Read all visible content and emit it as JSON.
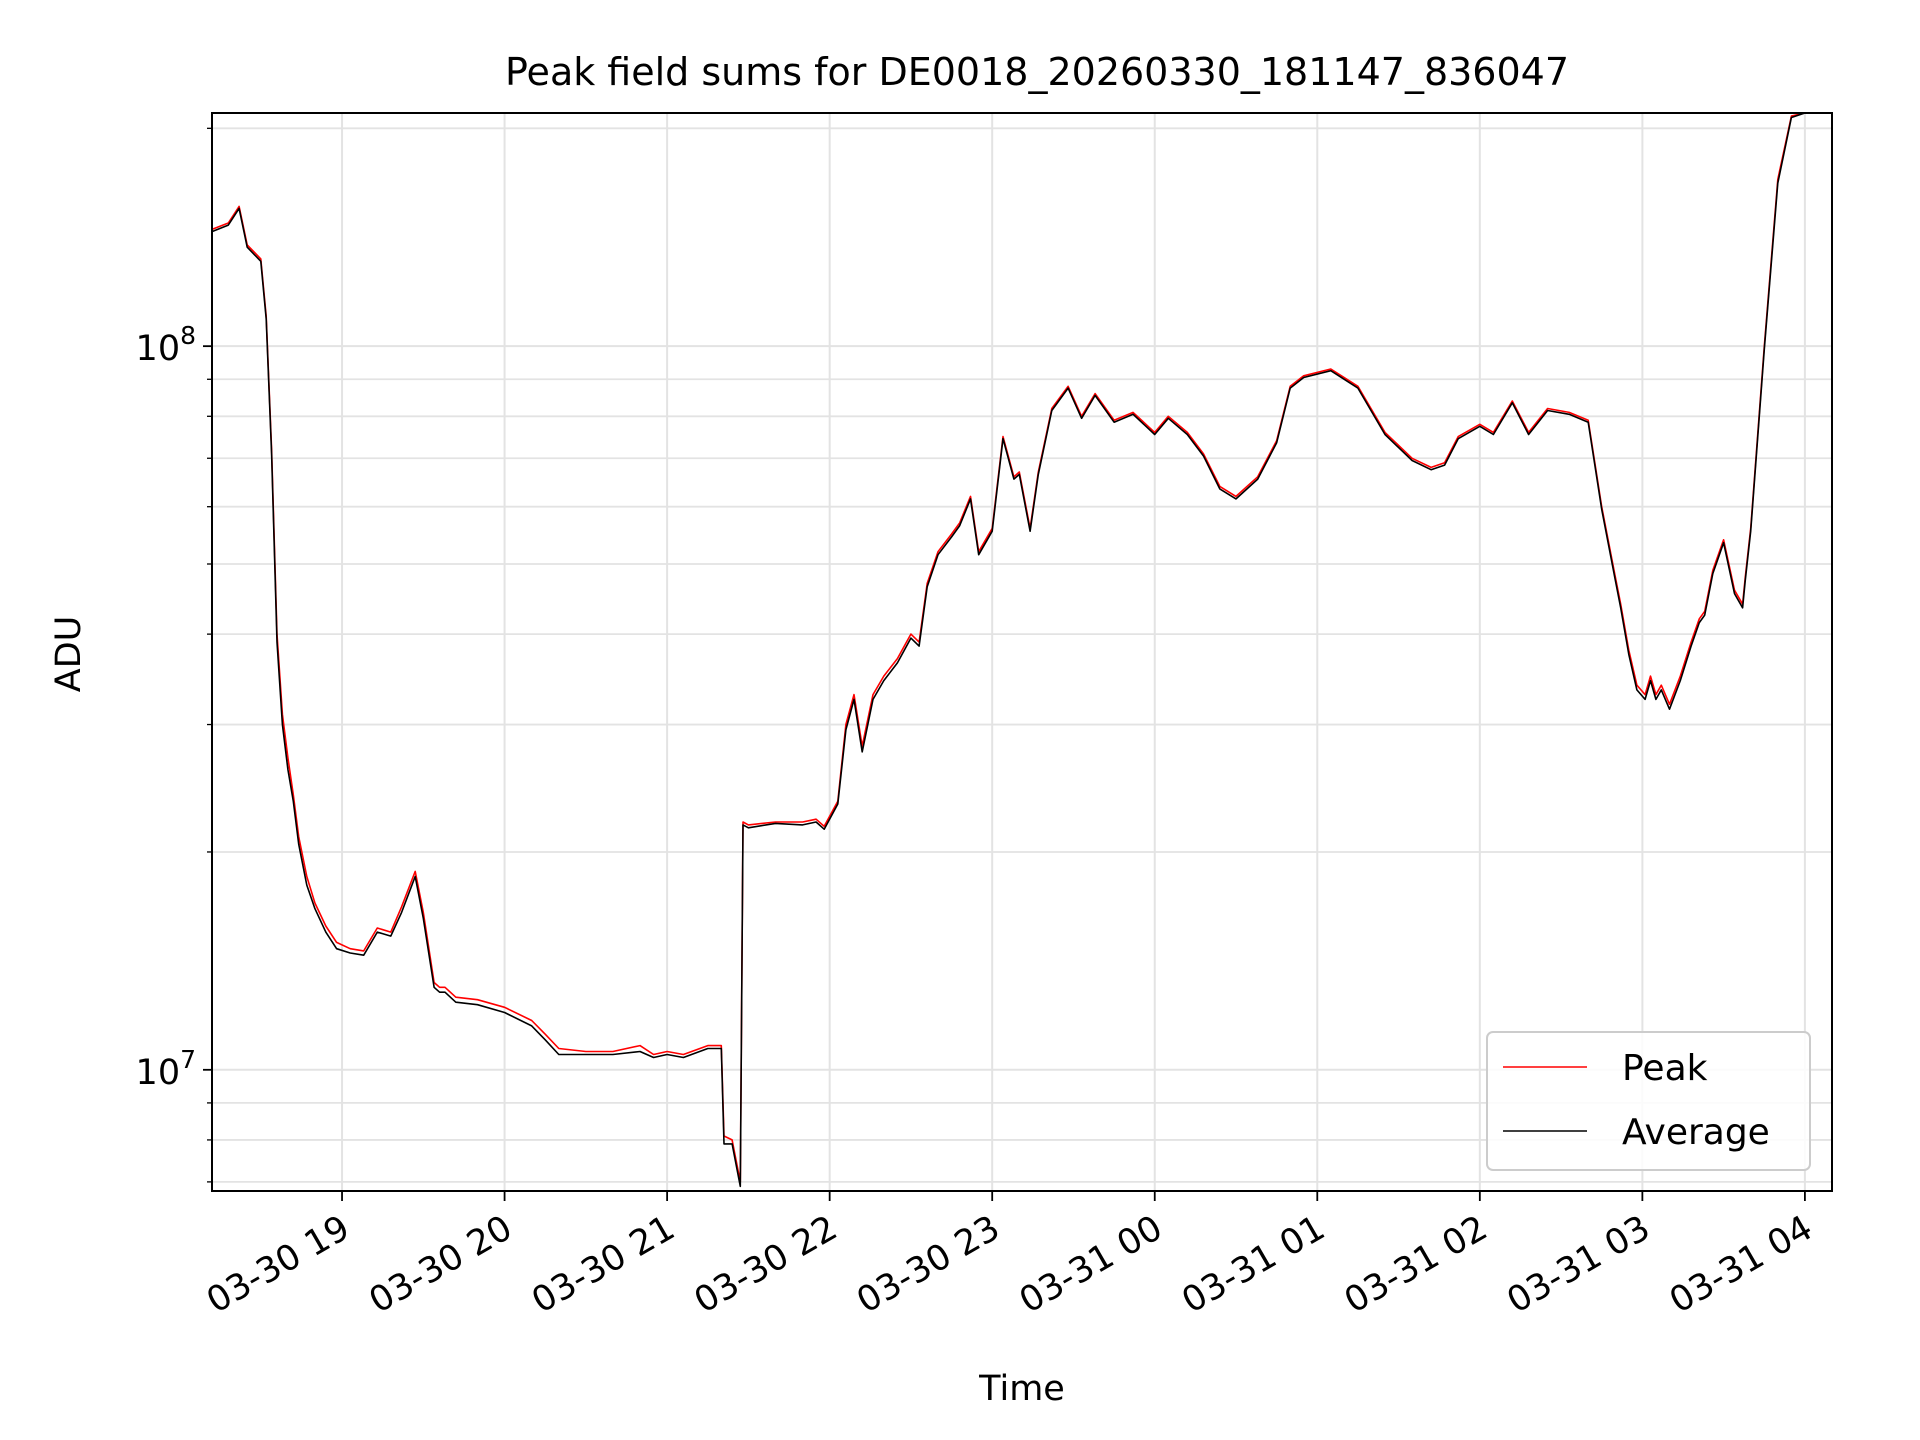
{
  "chart_data": {
    "type": "line",
    "title": "Peak field sums for DE0018_20260330_181147_836047",
    "xlabel": "Time",
    "ylabel": "ADU",
    "y_scale": "log",
    "ylim": [
      6800000,
      210000000
    ],
    "xlim": [
      "03-30 18:12",
      "03-31 04:10"
    ],
    "grid": true,
    "x_ticks": [
      {
        "t": "03-30 19:00",
        "label": "03-30 19"
      },
      {
        "t": "03-30 20:00",
        "label": "03-30 20"
      },
      {
        "t": "03-30 21:00",
        "label": "03-30 21"
      },
      {
        "t": "03-30 22:00",
        "label": "03-30 22"
      },
      {
        "t": "03-30 23:00",
        "label": "03-30 23"
      },
      {
        "t": "03-31 00:00",
        "label": "03-31 00"
      },
      {
        "t": "03-31 01:00",
        "label": "03-31 01"
      },
      {
        "t": "03-31 02:00",
        "label": "03-31 02"
      },
      {
        "t": "03-31 03:00",
        "label": "03-31 03"
      },
      {
        "t": "03-31 04:00",
        "label": "03-31 04"
      }
    ],
    "y_ticks": [
      {
        "v": 10000000,
        "base": "10",
        "exp": "7"
      },
      {
        "v": 100000000,
        "base": "10",
        "exp": "8"
      }
    ],
    "legend_position": "lower right",
    "colors": {
      "Peak": "#ff0000",
      "Average": "#000000"
    },
    "x": [
      "03-30 18:12",
      "03-30 18:18",
      "03-30 18:22",
      "03-30 18:25",
      "03-30 18:30",
      "03-30 18:32",
      "03-30 18:34",
      "03-30 18:36",
      "03-30 18:38",
      "03-30 18:40",
      "03-30 18:42",
      "03-30 18:44",
      "03-30 18:47",
      "03-30 18:50",
      "03-30 18:54",
      "03-30 18:58",
      "03-30 19:03",
      "03-30 19:08",
      "03-30 19:13",
      "03-30 19:18",
      "03-30 19:22",
      "03-30 19:27",
      "03-30 19:30",
      "03-30 19:34",
      "03-30 19:36",
      "03-30 19:38",
      "03-30 19:42",
      "03-30 19:50",
      "03-30 20:00",
      "03-30 20:10",
      "03-30 20:15",
      "03-30 20:20",
      "03-30 20:30",
      "03-30 20:40",
      "03-30 20:50",
      "03-30 20:55",
      "03-30 21:00",
      "03-30 21:06",
      "03-30 21:15",
      "03-30 21:20",
      "03-30 21:21",
      "03-30 21:24",
      "03-30 21:27",
      "03-30 21:28",
      "03-30 21:30",
      "03-30 21:40",
      "03-30 21:50",
      "03-30 21:55",
      "03-30 21:58",
      "03-30 22:03",
      "03-30 22:06",
      "03-30 22:09",
      "03-30 22:12",
      "03-30 22:16",
      "03-30 22:20",
      "03-30 22:25",
      "03-30 22:30",
      "03-30 22:33",
      "03-30 22:36",
      "03-30 22:40",
      "03-30 22:45",
      "03-30 22:48",
      "03-30 22:52",
      "03-30 22:55",
      "03-30 23:00",
      "03-30 23:04",
      "03-30 23:08",
      "03-30 23:10",
      "03-30 23:14",
      "03-30 23:17",
      "03-30 23:22",
      "03-30 23:28",
      "03-30 23:33",
      "03-30 23:38",
      "03-30 23:45",
      "03-30 23:52",
      "03-31 00:00",
      "03-31 00:05",
      "03-31 00:12",
      "03-31 00:18",
      "03-31 00:24",
      "03-31 00:30",
      "03-31 00:38",
      "03-31 00:45",
      "03-31 00:50",
      "03-31 00:55",
      "03-31 01:05",
      "03-31 01:15",
      "03-31 01:25",
      "03-31 01:35",
      "03-31 01:42",
      "03-31 01:47",
      "03-31 01:52",
      "03-31 02:00",
      "03-31 02:05",
      "03-31 02:12",
      "03-31 02:18",
      "03-31 02:25",
      "03-31 02:33",
      "03-31 02:40",
      "03-31 02:45",
      "03-31 02:50",
      "03-31 02:52",
      "03-31 02:55",
      "03-31 02:58",
      "03-31 03:01",
      "03-31 03:03",
      "03-31 03:05",
      "03-31 03:07",
      "03-31 03:10",
      "03-31 03:14",
      "03-31 03:18",
      "03-31 03:21",
      "03-31 03:23",
      "03-31 03:26",
      "03-31 03:30",
      "03-31 03:34",
      "03-31 03:37",
      "03-31 03:38",
      "03-31 03:40",
      "03-31 03:45",
      "03-31 03:50",
      "03-31 03:55",
      "03-31 04:00",
      "03-31 04:03",
      "03-31 04:06",
      "03-31 04:10"
    ],
    "series": [
      {
        "name": "Peak",
        "values": [
          145000000,
          148000000,
          156000000,
          138000000,
          132000000,
          110000000,
          72000000,
          40000000,
          31000000,
          27000000,
          24000000,
          21000000,
          18500000,
          17000000,
          15800000,
          15000000,
          14700000,
          14600000,
          15700000,
          15500000,
          16800000,
          18800000,
          16500000,
          13200000,
          13000000,
          13000000,
          12600000,
          12500000,
          12200000,
          11700000,
          11200000,
          10700000,
          10600000,
          10600000,
          10800000,
          10500000,
          10600000,
          10500000,
          10800000,
          10800000,
          8100000,
          8000000,
          7000000,
          22000000,
          21800000,
          22000000,
          22000000,
          22200000,
          21700000,
          23500000,
          30000000,
          33000000,
          28000000,
          33000000,
          35000000,
          37000000,
          40000000,
          39000000,
          47000000,
          52000000,
          55000000,
          57000000,
          62000000,
          52000000,
          56000000,
          75000000,
          66000000,
          67000000,
          56000000,
          67000000,
          82000000,
          88000000,
          80000000,
          86000000,
          79000000,
          81000000,
          76000000,
          80000000,
          76000000,
          71000000,
          64000000,
          62000000,
          66000000,
          74000000,
          88000000,
          91000000,
          93000000,
          88000000,
          76000000,
          70000000,
          68000000,
          69000000,
          75000000,
          78000000,
          76000000,
          84000000,
          76000000,
          82000000,
          81000000,
          79000000,
          60000000,
          48000000,
          44000000,
          38000000,
          34000000,
          33000000,
          35000000,
          33000000,
          34000000,
          32000000,
          35000000,
          39000000,
          42000000,
          43000000,
          49000000,
          54000000,
          46000000,
          44000000,
          48000000,
          56000000,
          100000000,
          170000000,
          208000000,
          210000000,
          210000000,
          210000000,
          210000000
        ]
      },
      {
        "name": "Average",
        "values": [
          144000000,
          147000000,
          155000000,
          137000000,
          131000000,
          109000000,
          71000000,
          39000000,
          30000000,
          26000000,
          23500000,
          20500000,
          18000000,
          16700000,
          15500000,
          14700000,
          14500000,
          14400000,
          15500000,
          15300000,
          16500000,
          18500000,
          16200000,
          13000000,
          12800000,
          12800000,
          12400000,
          12300000,
          12000000,
          11500000,
          11000000,
          10500000,
          10500000,
          10500000,
          10600000,
          10400000,
          10500000,
          10400000,
          10700000,
          10700000,
          7900000,
          7900000,
          6900000,
          21800000,
          21600000,
          21900000,
          21800000,
          22000000,
          21500000,
          23300000,
          29500000,
          32500000,
          27500000,
          32500000,
          34500000,
          36500000,
          39500000,
          38500000,
          46500000,
          51500000,
          54500000,
          56500000,
          61500000,
          51500000,
          55500000,
          74500000,
          65500000,
          66500000,
          55500000,
          66500000,
          81500000,
          87500000,
          79500000,
          85500000,
          78500000,
          80500000,
          75500000,
          79500000,
          75500000,
          70500000,
          63500000,
          61500000,
          65500000,
          73500000,
          87500000,
          90500000,
          92500000,
          87500000,
          75500000,
          69500000,
          67500000,
          68500000,
          74500000,
          77500000,
          75500000,
          83500000,
          75500000,
          81500000,
          80500000,
          78500000,
          59500000,
          47500000,
          43500000,
          37500000,
          33500000,
          32500000,
          34500000,
          32500000,
          33500000,
          31500000,
          34500000,
          38500000,
          41500000,
          42500000,
          48500000,
          53500000,
          45500000,
          43500000,
          47500000,
          55500000,
          99000000,
          168000000,
          207000000,
          210000000,
          210000000,
          210000000,
          210000000
        ]
      }
    ]
  }
}
